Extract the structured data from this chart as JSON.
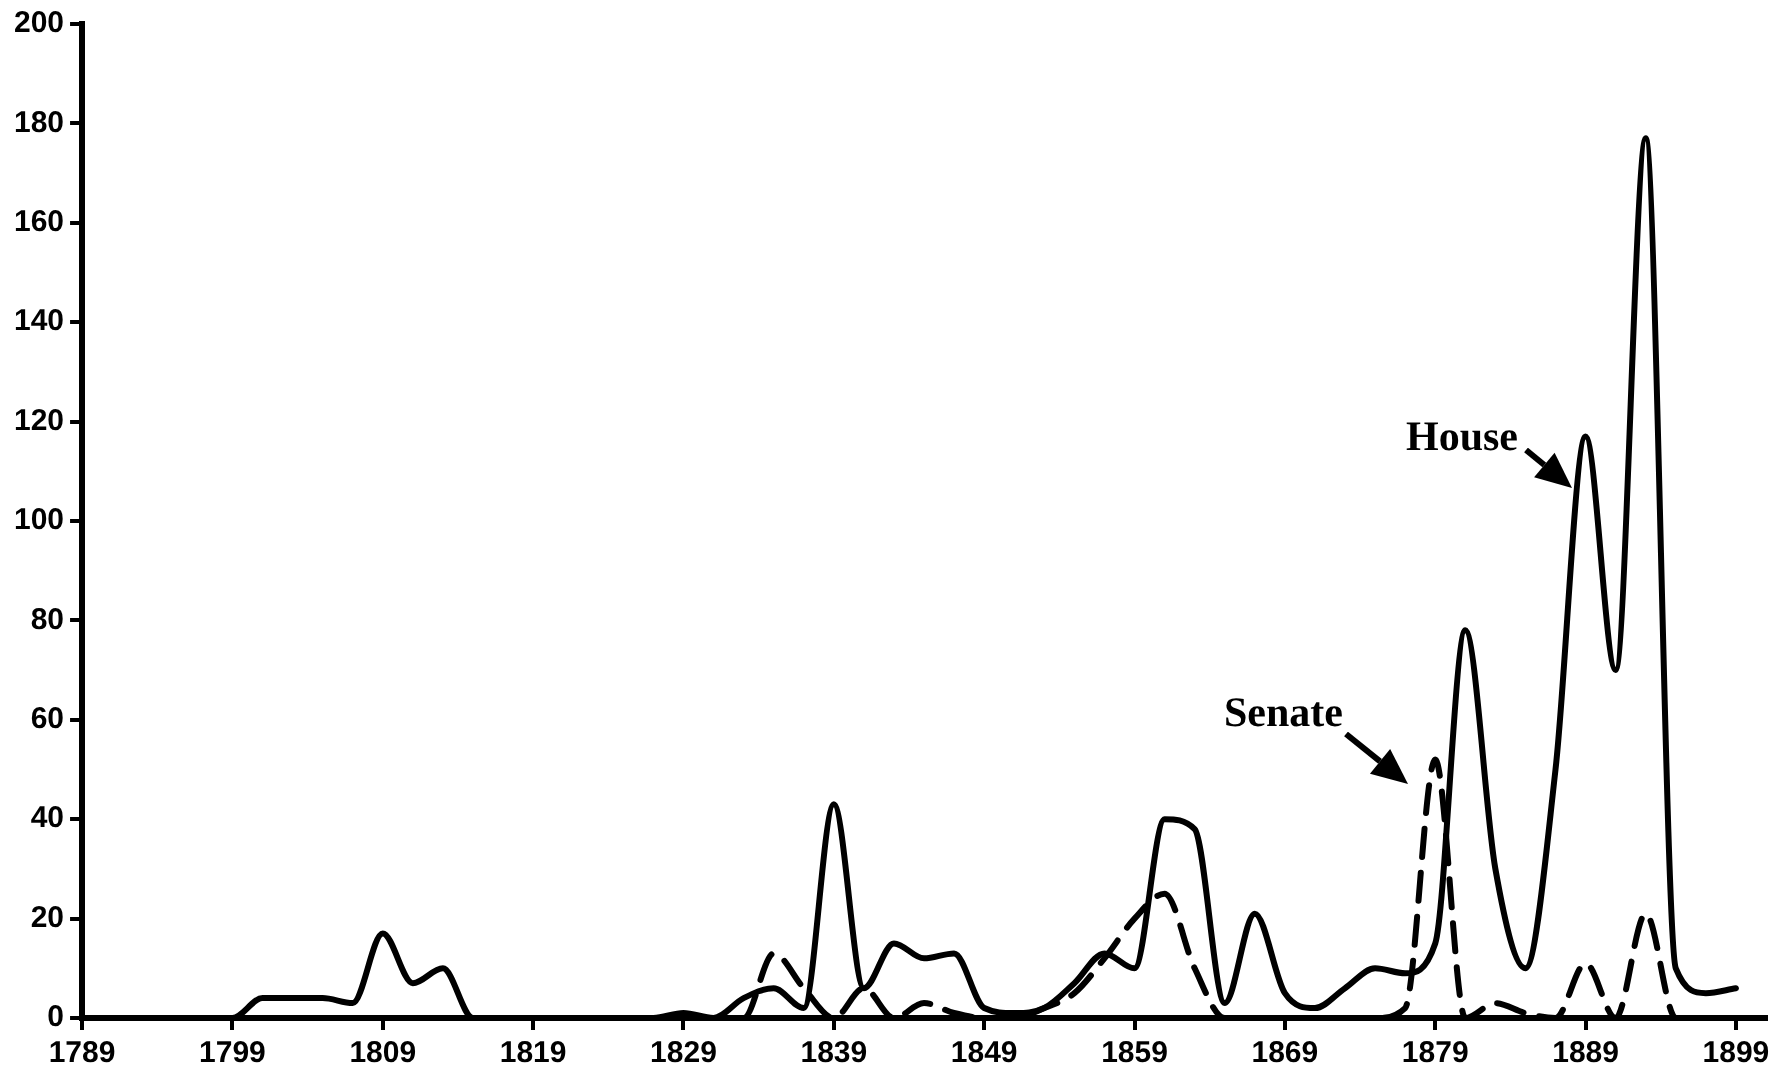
{
  "chart_data": {
    "type": "line",
    "x": [
      1789,
      1791,
      1793,
      1795,
      1797,
      1799,
      1801,
      1803,
      1805,
      1807,
      1809,
      1811,
      1813,
      1815,
      1817,
      1819,
      1821,
      1823,
      1825,
      1827,
      1829,
      1831,
      1833,
      1835,
      1837,
      1839,
      1841,
      1843,
      1845,
      1847,
      1849,
      1851,
      1853,
      1855,
      1857,
      1859,
      1861,
      1863,
      1865,
      1867,
      1869,
      1871,
      1873,
      1875,
      1877,
      1879,
      1881,
      1883,
      1885,
      1887,
      1889,
      1891,
      1893,
      1895,
      1897,
      1899
    ],
    "series": [
      {
        "name": "House",
        "color": "#000000",
        "line_style": "solid",
        "values": [
          0,
          0,
          0,
          0,
          0,
          0,
          4,
          4,
          4,
          3,
          17,
          7,
          10,
          0,
          0,
          0,
          0,
          0,
          0,
          0,
          1,
          0,
          4,
          6,
          2,
          43,
          6,
          15,
          12,
          13,
          2,
          1,
          2,
          7,
          13,
          10,
          40,
          38,
          3,
          21,
          5,
          2,
          6,
          10,
          9,
          15,
          78,
          30,
          10,
          50,
          117,
          70,
          177,
          10,
          5,
          6
        ]
      },
      {
        "name": "Senate",
        "color": "#000000",
        "line_style": "dashed",
        "values": [
          0,
          0,
          0,
          0,
          0,
          0,
          0,
          0,
          0,
          0,
          0,
          0,
          0,
          0,
          0,
          0,
          0,
          0,
          0,
          0,
          0,
          0,
          0,
          13,
          6,
          0,
          6,
          0,
          3,
          1,
          0,
          0,
          2,
          5,
          12,
          20,
          25,
          10,
          0,
          0,
          0,
          0,
          0,
          0,
          2,
          52,
          0,
          3,
          1,
          0,
          11,
          0,
          21,
          0,
          0,
          0
        ]
      }
    ],
    "xlim": [
      1789,
      1901
    ],
    "xticks": [
      1789,
      1799,
      1809,
      1819,
      1829,
      1839,
      1849,
      1859,
      1869,
      1879,
      1889,
      1899
    ],
    "ylim": [
      0,
      200
    ],
    "yticks": [
      0,
      20,
      40,
      60,
      80,
      100,
      120,
      140,
      160,
      180,
      200
    ],
    "grid": false,
    "marker": "none"
  }
}
